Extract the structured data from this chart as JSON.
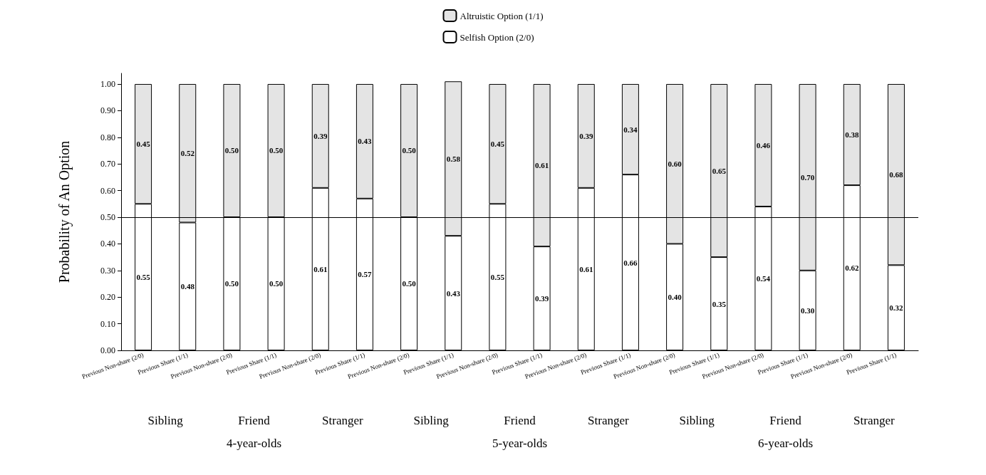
{
  "chart_data": {
    "type": "bar",
    "stacked": true,
    "ylabel": "Probability of An Option",
    "categories": [
      "Previous Non-share (2/0)",
      "Previous Share (1/1)",
      "Previous Non-share (2/0)",
      "Previous Share (1/1)",
      "Previous Non-share (2/0)",
      "Previous Share (1/1)",
      "Previous Non-share (2/0)",
      "Previous Share (1/1)",
      "Previous Non-share (2/0)",
      "Previous Share (1/1)",
      "Previous Non-share (2/0)",
      "Previous Share (1/1)",
      "Previous Non-share (2/0)",
      "Previous Share (1/1)",
      "Previous Non-share (2/0)",
      "Previous Share (1/1)",
      "Previous Non-share (2/0)",
      "Previous Share (1/1)"
    ],
    "series": [
      {
        "name": "Selfish Option (2/0)",
        "color": "#ffffff",
        "values": [
          0.55,
          0.48,
          0.5,
          0.5,
          0.61,
          0.57,
          0.5,
          0.43,
          0.55,
          0.39,
          0.61,
          0.66,
          0.4,
          0.35,
          0.54,
          0.3,
          0.62,
          0.32
        ],
        "value_labels": [
          "0.55",
          "0.48",
          "0.50",
          "0.50",
          "0.61",
          "0.57",
          "0.50",
          "0.43",
          "0.55",
          "0.39",
          "0.61",
          "0.66",
          "0.40",
          "0.35",
          "0.54",
          "0.30",
          "0.62",
          "0.32"
        ]
      },
      {
        "name": "Altruistic Option (1/1)",
        "color": "#e4e4e4",
        "values": [
          0.45,
          0.52,
          0.5,
          0.5,
          0.39,
          0.43,
          0.5,
          0.58,
          0.45,
          0.61,
          0.39,
          0.34,
          0.6,
          0.65,
          0.46,
          0.7,
          0.38,
          0.68
        ],
        "value_labels": [
          "0.45",
          "0.52",
          "0.50",
          "0.50",
          "0.39",
          "0.43",
          "0.50",
          "0.58",
          "0.45",
          "0.61",
          "0.39",
          "0.34",
          "0.60",
          "0.65",
          "0.46",
          "0.70",
          "0.38",
          "0.68"
        ]
      }
    ],
    "ylim": [
      0,
      1.04
    ],
    "yticks": [
      {
        "value": 0,
        "label": "0.00"
      },
      {
        "value": 0.1,
        "label": "0.10"
      },
      {
        "value": 0.2,
        "label": "0.20"
      },
      {
        "value": 0.3,
        "label": "0.30"
      },
      {
        "value": 0.4,
        "label": "0.40"
      },
      {
        "value": 0.5,
        "label": "0.50"
      },
      {
        "value": 0.6,
        "label": "0.60"
      },
      {
        "value": 0.7,
        "label": "0.70"
      },
      {
        "value": 0.8,
        "label": "0.80"
      },
      {
        "value": 0.9,
        "label": "0.90"
      },
      {
        "value": 1,
        "label": "1.00"
      }
    ],
    "ref_lines": [
      {
        "axis": "y",
        "value": 0.5,
        "label": null,
        "color": "#000000",
        "line_style": "solid"
      }
    ],
    "annotations": [
      "Sibling",
      "Friend",
      "Stranger",
      "Sibling",
      "Friend",
      "Stranger",
      "Sibling",
      "Friend",
      "Stranger",
      "4-year-olds",
      "5-year-olds",
      "6-year-olds"
    ],
    "grid": false,
    "legend": "top"
  }
}
